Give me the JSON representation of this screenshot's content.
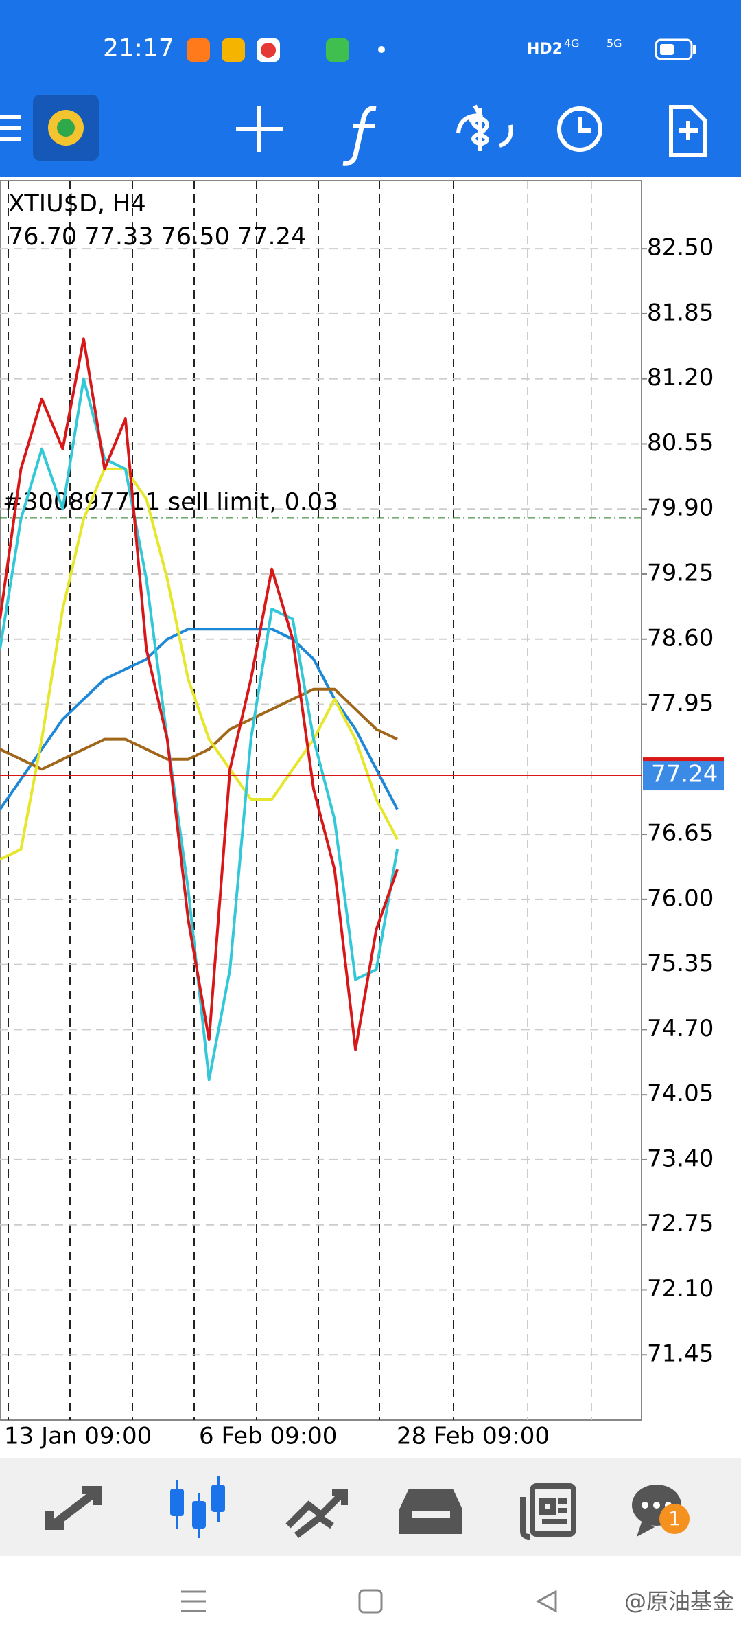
{
  "status_bar": {
    "time": "21:17",
    "hd": "HD2",
    "net1": "4G",
    "net2": "5G"
  },
  "chart_data": {
    "type": "line",
    "symbol": "XTIU$D, H4",
    "ohlc": "76.70 77.33 76.50 77.24",
    "order_label": "#300897711 sell limit, 0.03",
    "order_price": 79.81,
    "last_price": 77.24,
    "ylim": [
      70.8,
      83.18
    ],
    "yticks": [
      {
        "value": 82.5,
        "label": "82.50"
      },
      {
        "value": 81.85,
        "label": "81.85"
      },
      {
        "value": 81.2,
        "label": "81.20"
      },
      {
        "value": 80.55,
        "label": "80.55"
      },
      {
        "value": 79.9,
        "label": "79.90"
      },
      {
        "value": 79.25,
        "label": "79.25"
      },
      {
        "value": 78.6,
        "label": "78.60"
      },
      {
        "value": 77.95,
        "label": "77.95"
      },
      {
        "value": 76.65,
        "label": "76.65"
      },
      {
        "value": 76.0,
        "label": "76.00"
      },
      {
        "value": 75.35,
        "label": "75.35"
      },
      {
        "value": 74.7,
        "label": "74.70"
      },
      {
        "value": 74.05,
        "label": "74.05"
      },
      {
        "value": 73.4,
        "label": "73.40"
      },
      {
        "value": 72.75,
        "label": "72.75"
      },
      {
        "value": 72.1,
        "label": "72.10"
      },
      {
        "value": 71.45,
        "label": "71.45"
      }
    ],
    "x_labels": [
      "13 Jan 09:00",
      "6 Feb 09:00",
      "28 Feb 09:00"
    ],
    "series": [
      {
        "color": "#1e88d6",
        "values": [
          76.9,
          77.2,
          77.5,
          77.8,
          78.0,
          78.2,
          78.3,
          78.4,
          78.6,
          78.7,
          78.7,
          78.7,
          78.7,
          78.7,
          78.6,
          78.4,
          78.0,
          77.7,
          77.3,
          76.9
        ]
      },
      {
        "color": "#a0661a",
        "values": [
          77.5,
          77.4,
          77.3,
          77.4,
          77.5,
          77.6,
          77.6,
          77.5,
          77.4,
          77.4,
          77.5,
          77.7,
          77.8,
          77.9,
          78.0,
          78.1,
          78.1,
          77.9,
          77.7,
          77.6
        ]
      },
      {
        "color": "#e6e62a",
        "values": [
          76.4,
          76.5,
          77.6,
          78.9,
          79.8,
          80.3,
          80.3,
          80.0,
          79.2,
          78.2,
          77.6,
          77.3,
          77.0,
          77.0,
          77.3,
          77.6,
          78.0,
          77.6,
          77.0,
          76.6
        ]
      },
      {
        "color": "#32c8d8",
        "values": [
          78.5,
          79.8,
          80.5,
          79.9,
          81.2,
          80.4,
          80.3,
          79.2,
          77.6,
          76.1,
          74.2,
          75.3,
          77.6,
          78.9,
          78.8,
          77.6,
          76.8,
          75.2,
          75.3,
          76.5
        ]
      },
      {
        "color": "#d81818",
        "values": [
          78.8,
          80.3,
          81.0,
          80.5,
          81.6,
          80.3,
          80.8,
          78.5,
          77.6,
          75.8,
          74.6,
          77.3,
          78.2,
          79.3,
          78.6,
          77.1,
          76.3,
          74.5,
          75.7,
          76.3
        ]
      }
    ]
  },
  "bottom_nav": {
    "badge": "1"
  },
  "watermark": "@原油基金"
}
